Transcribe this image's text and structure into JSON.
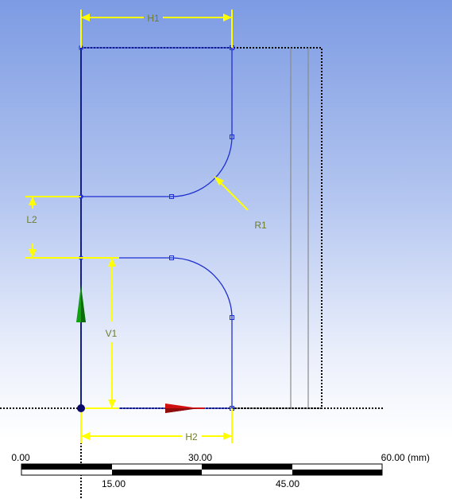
{
  "dimensions": {
    "h1": "H1",
    "h2": "H2",
    "v1": "V1",
    "l2": "L2",
    "r1": "R1"
  },
  "scale_bar": {
    "top_labels": [
      "0.00",
      "30.00",
      "60.00 (mm)"
    ],
    "bottom_labels": [
      "15.00",
      "45.00"
    ]
  },
  "colors": {
    "sketch": "#1f2fd0",
    "dimension": "#ffff00",
    "dimension_text": "#6f7d2c",
    "x_axis": "#d01010",
    "y_axis": "#10a010"
  },
  "icons": {
    "x_axis_arrow": "x-axis-arrow-icon",
    "y_axis_arrow": "y-axis-arrow-icon",
    "origin": "origin-point-icon"
  }
}
